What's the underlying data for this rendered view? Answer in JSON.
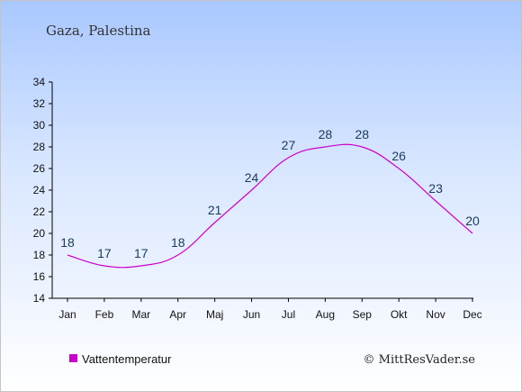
{
  "chart_data": {
    "type": "line",
    "location": "Gaza, Palestina",
    "categories": [
      "Jan",
      "Feb",
      "Mar",
      "Apr",
      "Maj",
      "Jun",
      "Jul",
      "Aug",
      "Sep",
      "Okt",
      "Nov",
      "Dec"
    ],
    "series": [
      {
        "name": "Vattentemperatur",
        "values": [
          18,
          17,
          17,
          18,
          21,
          24,
          27,
          28,
          28,
          26,
          23,
          20
        ],
        "color": "#cc00cc"
      }
    ],
    "ylim": [
      14,
      34
    ],
    "yticks": [
      14,
      16,
      18,
      20,
      22,
      24,
      26,
      28,
      30,
      32,
      34
    ],
    "grid": false,
    "legend_position": "bottom-left"
  },
  "credit": "© MittResVader.se",
  "colors": {
    "line": "#cc00cc",
    "label": "#1a3a5c",
    "axis": "#000000"
  }
}
